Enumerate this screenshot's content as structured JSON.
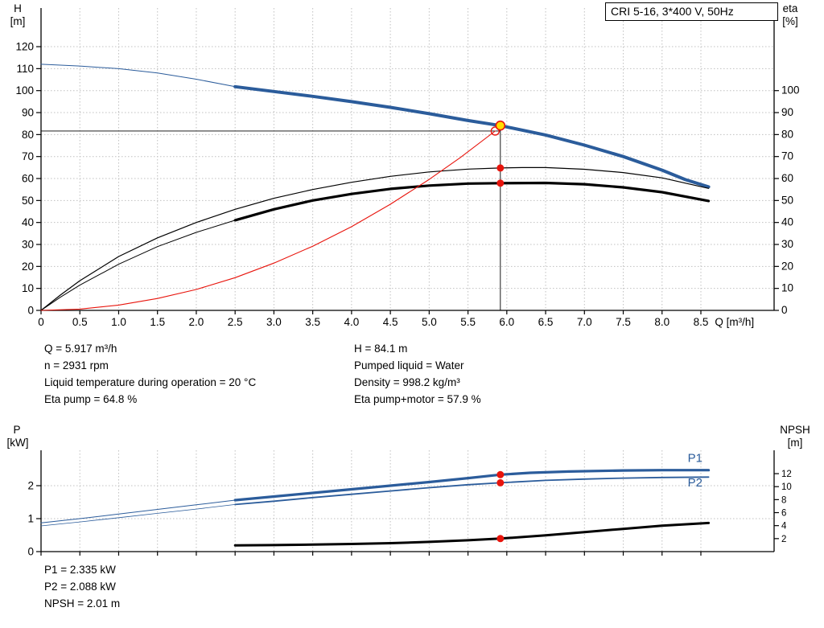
{
  "title_box": {
    "label": "CRI 5-16, 3*400 V, 50Hz"
  },
  "colors": {
    "blue": "#2b5c9b",
    "black": "#000000",
    "red": "#e8140c",
    "grid": "#c0c0c0",
    "axis": "#000000",
    "duty_yellow": "#ffdd00",
    "text": "#000000"
  },
  "chart_data": [
    {
      "type": "line",
      "name": "qh-eta-chart",
      "left_axis": {
        "title": "H",
        "unit": "[m]",
        "scale": "H",
        "ticks": [
          0,
          10,
          20,
          30,
          40,
          50,
          60,
          70,
          80,
          90,
          100,
          110,
          120
        ]
      },
      "right_axis": {
        "title": "eta",
        "unit": "[%]",
        "scale": "eta",
        "ticks": [
          0,
          10,
          20,
          30,
          40,
          50,
          60,
          70,
          80,
          90,
          100
        ]
      },
      "x_axis": {
        "title": "Q [m³/h]",
        "tick_values": [
          0,
          0.5,
          1,
          1.5,
          2,
          2.5,
          3,
          3.5,
          4,
          4.5,
          5,
          5.5,
          6,
          6.5,
          7,
          7.5,
          8,
          8.5
        ],
        "tick_labels": [
          "0",
          "0.5",
          "1.0",
          "1.5",
          "2.0",
          "2.5",
          "3.0",
          "3.5",
          "4.0",
          "4.5",
          "5.0",
          "5.5",
          "6.0",
          "6.5",
          "7.0",
          "7.5",
          "8.0",
          "8.5"
        ]
      },
      "series": [
        {
          "name": "qh-curve-lead",
          "axis": "H",
          "color": "blue",
          "width": 1,
          "points": [
            [
              0,
              112
            ],
            [
              0.5,
              111.2
            ],
            [
              1,
              110
            ],
            [
              1.5,
              108
            ],
            [
              2,
              105.2
            ],
            [
              2.5,
              101.8
            ]
          ]
        },
        {
          "name": "qh-curve",
          "axis": "H",
          "color": "blue",
          "width": 4,
          "points": [
            [
              2.5,
              101.8
            ],
            [
              3,
              99.6
            ],
            [
              3.5,
              97.4
            ],
            [
              4,
              95.0
            ],
            [
              4.5,
              92.4
            ],
            [
              5,
              89.5
            ],
            [
              5.5,
              86.4
            ],
            [
              5.917,
              84.1
            ],
            [
              6.5,
              79.8
            ],
            [
              7,
              75.2
            ],
            [
              7.5,
              70.0
            ],
            [
              8,
              63.8
            ],
            [
              8.3,
              59.5
            ],
            [
              8.6,
              56.2
            ]
          ]
        },
        {
          "name": "eta-pump-curve",
          "axis": "eta",
          "color": "black",
          "width": 1.2,
          "points": [
            [
              0,
              0
            ],
            [
              0.25,
              7
            ],
            [
              0.5,
              13.5
            ],
            [
              1,
              24.5
            ],
            [
              1.5,
              33
            ],
            [
              2,
              40
            ],
            [
              2.5,
              46
            ],
            [
              3,
              51
            ],
            [
              3.5,
              55
            ],
            [
              4,
              58.3
            ],
            [
              4.5,
              61
            ],
            [
              5,
              63
            ],
            [
              5.5,
              64.3
            ],
            [
              5.917,
              64.8
            ],
            [
              6.2,
              65
            ],
            [
              6.5,
              65
            ],
            [
              7,
              64.2
            ],
            [
              7.5,
              62.7
            ],
            [
              8,
              60.3
            ],
            [
              8.6,
              55.5
            ]
          ]
        },
        {
          "name": "eta-pump-motor-curve-lead",
          "axis": "eta",
          "color": "black",
          "width": 1,
          "points": [
            [
              0,
              0
            ],
            [
              0.25,
              6
            ],
            [
              0.5,
              11.5
            ],
            [
              1,
              21
            ],
            [
              1.5,
              29
            ],
            [
              2,
              35.5
            ],
            [
              2.5,
              41
            ]
          ]
        },
        {
          "name": "eta-pump-motor-curve",
          "axis": "eta",
          "color": "black",
          "width": 3.2,
          "points": [
            [
              2.5,
              41
            ],
            [
              3,
              46
            ],
            [
              3.5,
              50
            ],
            [
              4,
              53
            ],
            [
              4.5,
              55.3
            ],
            [
              5,
              56.8
            ],
            [
              5.5,
              57.7
            ],
            [
              5.917,
              57.9
            ],
            [
              6.5,
              58
            ],
            [
              7,
              57.4
            ],
            [
              7.5,
              56
            ],
            [
              8,
              53.8
            ],
            [
              8.6,
              49.8
            ]
          ]
        },
        {
          "name": "system-curve",
          "axis": "H",
          "color": "red",
          "width": 1.1,
          "points": [
            [
              0,
              0
            ],
            [
              0.5,
              0.6
            ],
            [
              1,
              2.4
            ],
            [
              1.5,
              5.4
            ],
            [
              2,
              9.5
            ],
            [
              2.5,
              14.9
            ],
            [
              3,
              21.5
            ],
            [
              3.5,
              29.2
            ],
            [
              4,
              38.1
            ],
            [
              4.5,
              48.3
            ],
            [
              5,
              59.6
            ],
            [
              5.4,
              69.5
            ],
            [
              5.85,
              81.6
            ]
          ]
        }
      ],
      "guide_lines": [
        {
          "name": "duty-hline",
          "axis": "H",
          "q1": 0,
          "v1": 81.6,
          "q2": 5.917,
          "v2": 81.6
        },
        {
          "name": "duty-vline",
          "axis": "H",
          "q1": 5.917,
          "v1": 0,
          "q2": 5.917,
          "v2": 84.1
        }
      ],
      "markers": [
        {
          "name": "system-intersect-circle",
          "q": 5.85,
          "v": 81.6,
          "axis": "H",
          "r": 5,
          "fill": "none",
          "stroke": "red",
          "stroke_width": 1.4
        },
        {
          "name": "duty-point",
          "q": 5.917,
          "v": 84.1,
          "axis": "H",
          "r": 5.5,
          "fill": "duty_yellow",
          "stroke": "red",
          "stroke_width": 1.6
        },
        {
          "name": "eta-pump-dot",
          "q": 5.917,
          "v": 64.8,
          "axis": "eta",
          "r": 4.5,
          "fill": "red"
        },
        {
          "name": "eta-pump-motor-dot",
          "q": 5.917,
          "v": 57.9,
          "axis": "eta",
          "r": 4.5,
          "fill": "red"
        }
      ]
    },
    {
      "type": "line",
      "name": "power-npsh-chart",
      "left_axis": {
        "title": "P",
        "unit": "[kW]",
        "scale": "P",
        "ticks": [
          0,
          1,
          2
        ]
      },
      "right_axis": {
        "title": "NPSH",
        "unit": "[m]",
        "scale": "NPSH",
        "ticks": [
          2,
          4,
          6,
          8,
          10,
          12
        ]
      },
      "x_axis": {
        "title": "",
        "tick_values": [
          0,
          0.5,
          1,
          1.5,
          2,
          2.5,
          3,
          3.5,
          4,
          4.5,
          5,
          5.5,
          6,
          6.5,
          7,
          7.5,
          8,
          8.5
        ],
        "tick_labels": []
      },
      "series": [
        {
          "name": "p1-curve-lead",
          "axis": "P",
          "color": "blue",
          "width": 1,
          "points": [
            [
              0,
              0.87
            ],
            [
              0.5,
              1.0
            ],
            [
              1,
              1.14
            ],
            [
              1.5,
              1.28
            ],
            [
              2,
              1.42
            ],
            [
              2.5,
              1.56
            ]
          ]
        },
        {
          "name": "p1-curve",
          "axis": "P",
          "color": "blue",
          "width": 3.2,
          "points": [
            [
              2.5,
              1.56
            ],
            [
              3,
              1.67
            ],
            [
              3.5,
              1.78
            ],
            [
              4,
              1.89
            ],
            [
              4.5,
              2.0
            ],
            [
              5,
              2.11
            ],
            [
              5.5,
              2.23
            ],
            [
              5.917,
              2.335
            ],
            [
              6.3,
              2.39
            ],
            [
              6.8,
              2.43
            ],
            [
              7.5,
              2.46
            ],
            [
              8,
              2.47
            ],
            [
              8.6,
              2.47
            ]
          ]
        },
        {
          "name": "p2-curve-lead",
          "axis": "P",
          "color": "blue",
          "width": 0.8,
          "points": [
            [
              0,
              0.78
            ],
            [
              0.5,
              0.9
            ],
            [
              1,
              1.03
            ],
            [
              1.5,
              1.16
            ],
            [
              2,
              1.29
            ],
            [
              2.5,
              1.43
            ]
          ]
        },
        {
          "name": "p2-curve",
          "axis": "P",
          "color": "blue",
          "width": 1.8,
          "points": [
            [
              2.5,
              1.43
            ],
            [
              3,
              1.53
            ],
            [
              3.5,
              1.64
            ],
            [
              4,
              1.74
            ],
            [
              4.5,
              1.84
            ],
            [
              5,
              1.94
            ],
            [
              5.5,
              2.03
            ],
            [
              5.917,
              2.088
            ],
            [
              6.5,
              2.16
            ],
            [
              7,
              2.2
            ],
            [
              7.5,
              2.23
            ],
            [
              8,
              2.25
            ],
            [
              8.6,
              2.26
            ]
          ]
        },
        {
          "name": "npsh-curve",
          "axis": "NPSH",
          "color": "black",
          "width": 3,
          "points": [
            [
              2.5,
              0.95
            ],
            [
              3,
              1.0
            ],
            [
              3.5,
              1.08
            ],
            [
              4,
              1.18
            ],
            [
              4.5,
              1.3
            ],
            [
              5,
              1.5
            ],
            [
              5.5,
              1.75
            ],
            [
              5.917,
              2.01
            ],
            [
              6.5,
              2.5
            ],
            [
              7,
              3.0
            ],
            [
              7.5,
              3.5
            ],
            [
              8,
              4.0
            ],
            [
              8.6,
              4.4
            ]
          ]
        }
      ],
      "guide_lines": [],
      "markers": [
        {
          "name": "p1-dot",
          "q": 5.917,
          "v": 2.335,
          "axis": "P",
          "r": 4.5,
          "fill": "red"
        },
        {
          "name": "p2-dot",
          "q": 5.917,
          "v": 2.088,
          "axis": "P",
          "r": 4.5,
          "fill": "red"
        },
        {
          "name": "npsh-dot",
          "q": 5.917,
          "v": 2.01,
          "axis": "NPSH",
          "r": 4.5,
          "fill": "red"
        }
      ],
      "labels": [
        {
          "name": "p1-label",
          "text": "P1",
          "q": 8.33,
          "v": 2.72,
          "axis": "P"
        },
        {
          "name": "p2-label",
          "text": "P2",
          "q": 8.33,
          "v": 1.97,
          "axis": "P"
        }
      ]
    }
  ],
  "info_top": {
    "left": [
      "Q = 5.917 m³/h",
      "n = 2931 rpm",
      "Liquid temperature during operation = 20 °C",
      "Eta pump = 64.8 %"
    ],
    "right": [
      "H = 84.1 m",
      "Pumped liquid = Water",
      "Density = 998.2 kg/m³",
      "Eta pump+motor = 57.9 %"
    ]
  },
  "info_bottom": [
    "P1 = 2.335 kW",
    "P2 = 2.088 kW",
    "NPSH = 2.01 m"
  ]
}
